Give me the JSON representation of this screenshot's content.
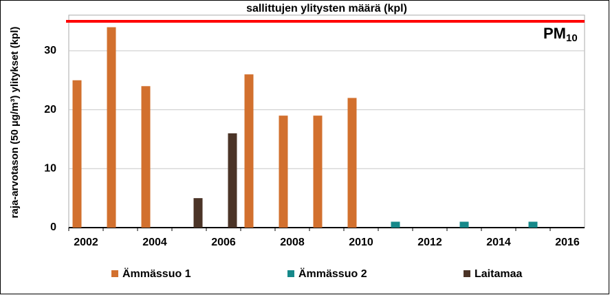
{
  "chart_data": {
    "type": "bar",
    "title": "sallittujen ylitysten määrä (kpl)",
    "annotation": "PM",
    "annotation_subscript": "10",
    "y_label": "raja-arvotason (50 µg/m³) ylitykset (kpl)",
    "categories": [
      "2002",
      null,
      "2004",
      null,
      "2006",
      null,
      "2008",
      null,
      "2010",
      null,
      "2012",
      null,
      "2014",
      null,
      "2016"
    ],
    "series": [
      {
        "name": "Ämmässuo 1",
        "color": "#d2702e",
        "values": [
          25,
          34,
          24,
          null,
          null,
          26,
          19,
          19,
          22,
          null,
          null,
          null,
          null,
          null,
          null
        ]
      },
      {
        "name": "Ämmässuo 2",
        "color": "#16898a",
        "values": [
          null,
          null,
          null,
          null,
          null,
          null,
          null,
          null,
          null,
          1,
          null,
          1,
          null,
          1,
          null
        ]
      },
      {
        "name": "Laitamaa",
        "color": "#4b3427",
        "values": [
          null,
          null,
          null,
          5,
          16,
          null,
          null,
          null,
          null,
          null,
          null,
          null,
          null,
          null,
          null
        ]
      }
    ],
    "limit_line": {
      "value": 35,
      "color": "#ff0000"
    },
    "ylim": [
      0,
      35
    ],
    "yticks": [
      0,
      10,
      20,
      30
    ],
    "grid": true
  }
}
